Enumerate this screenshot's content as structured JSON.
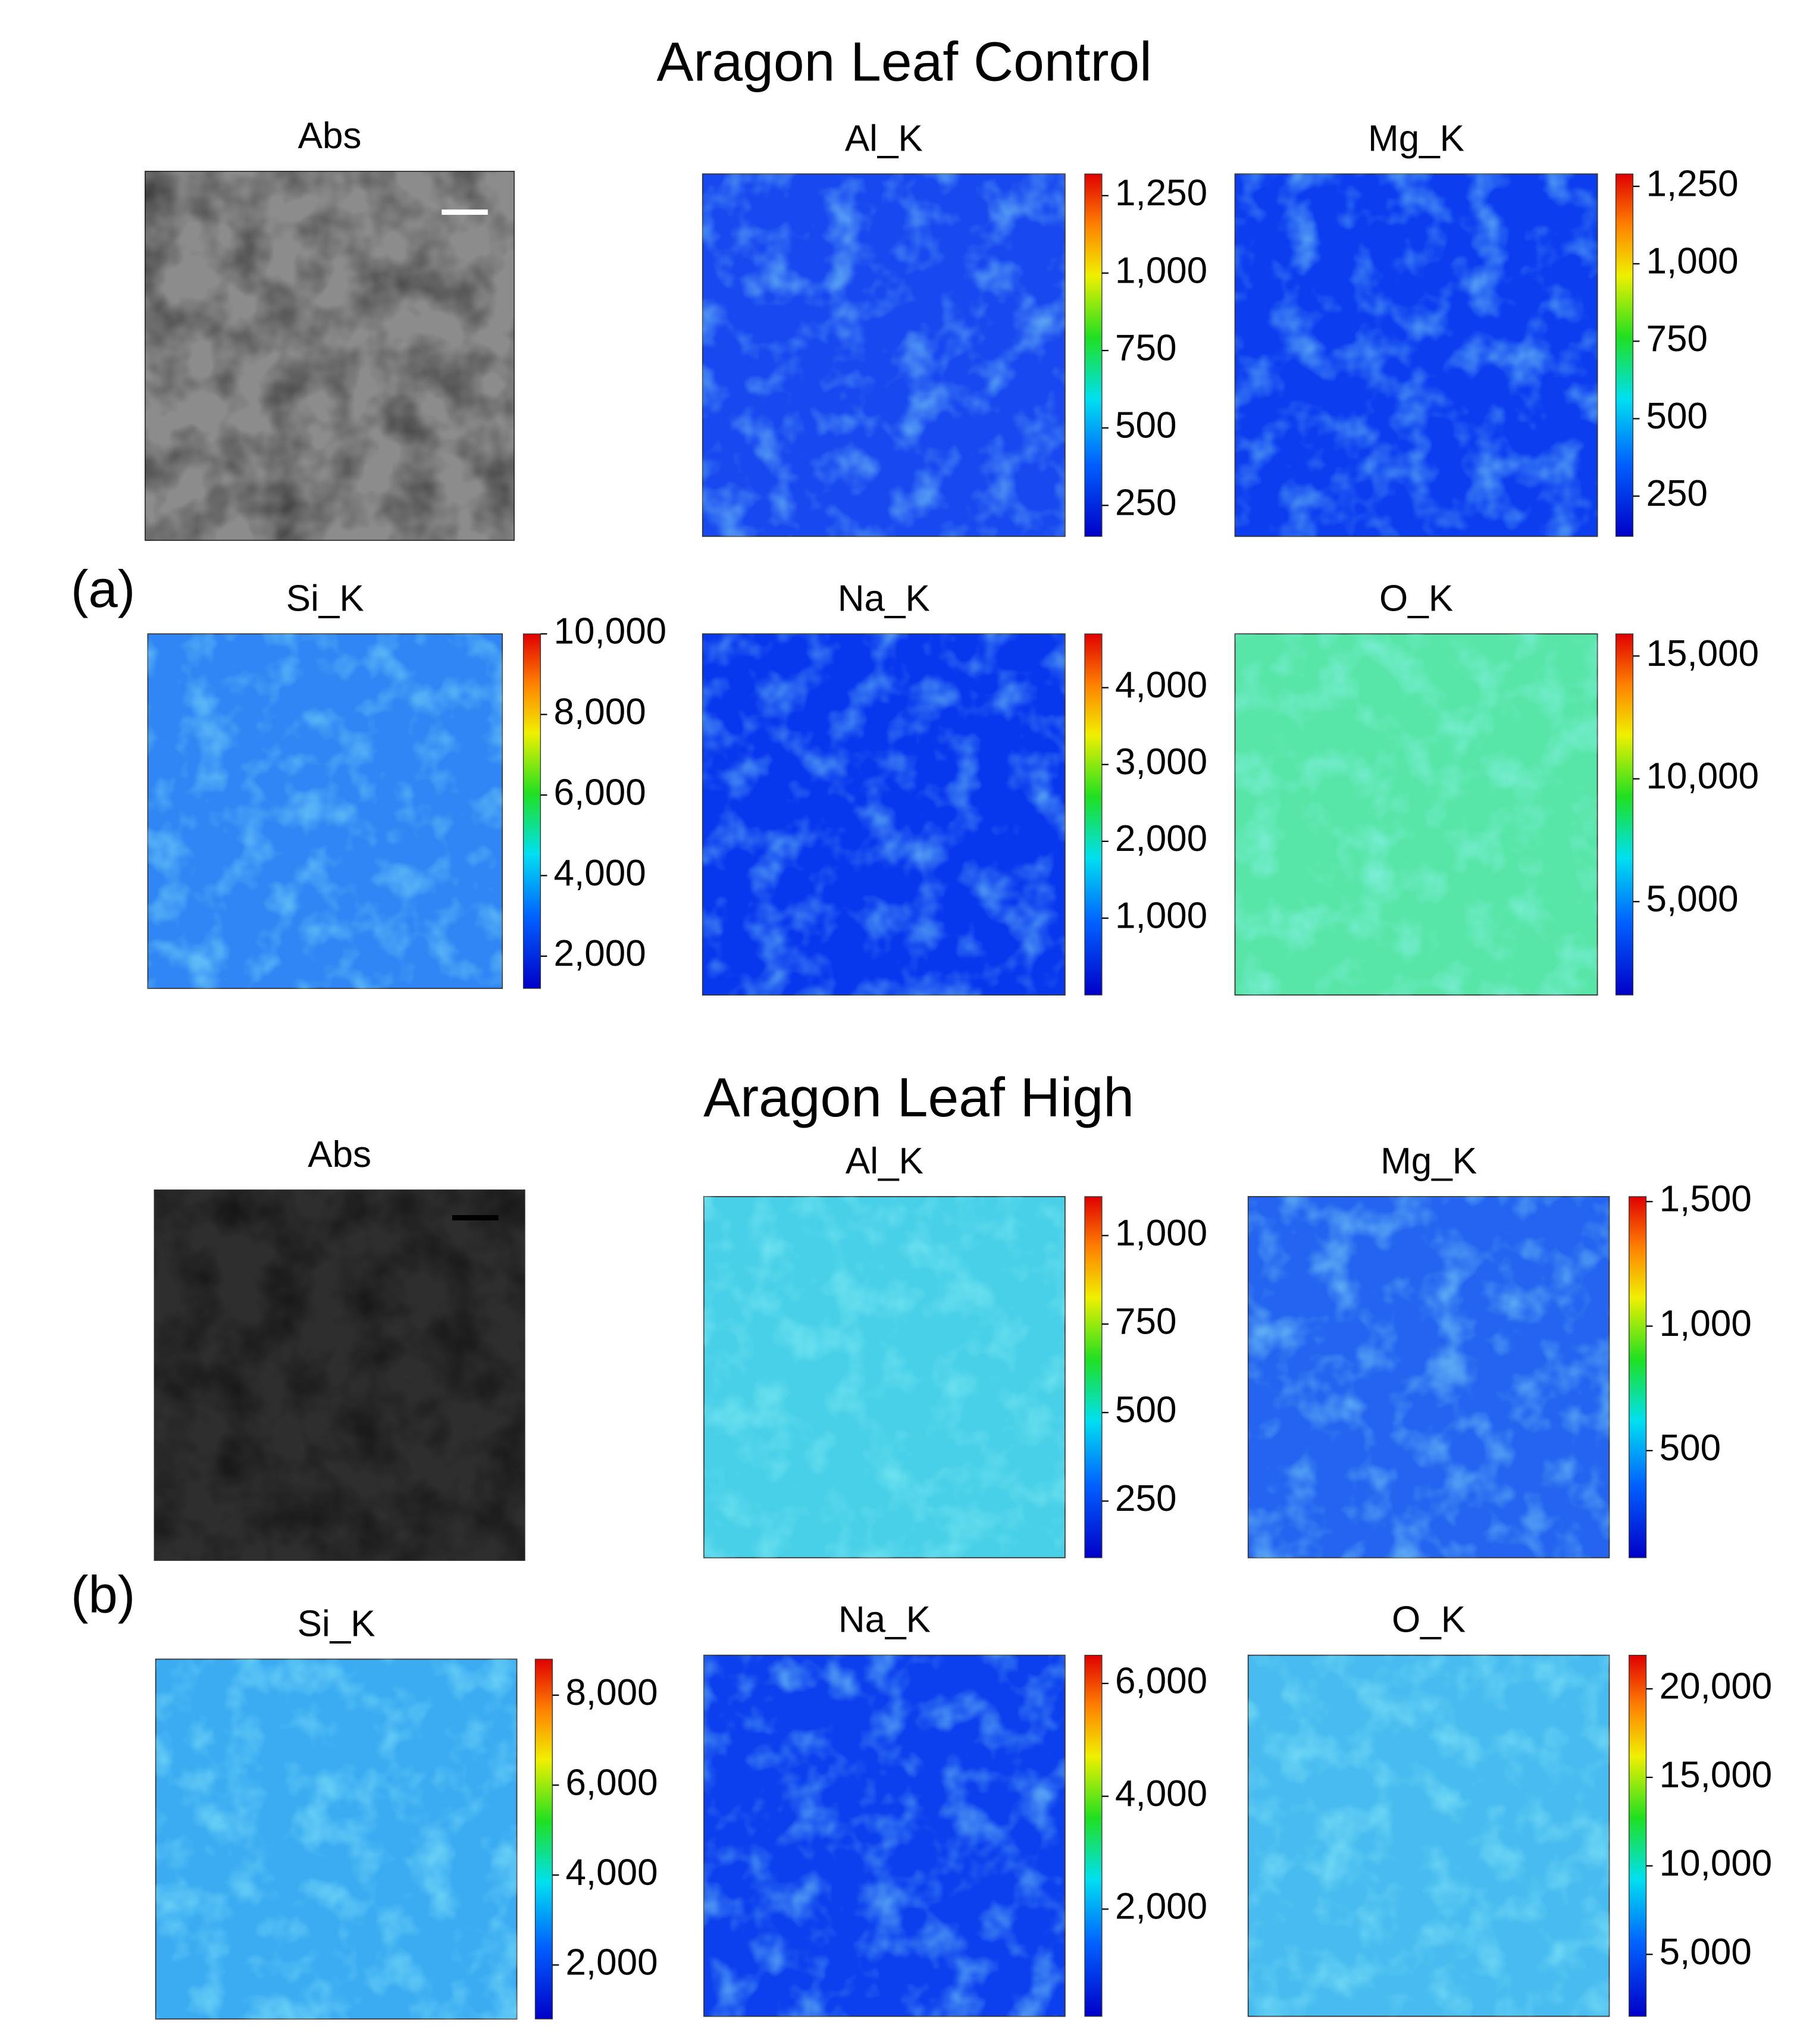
{
  "figure": {
    "panels": [
      {
        "label": "(a)",
        "title": "Aragon Leaf Control",
        "maps": [
          {
            "title": "Abs"
          },
          {
            "title": "Al_K",
            "clim": [
              150,
              1320
            ],
            "ticks": [
              {
                "value": 250,
                "label": "250"
              },
              {
                "value": 500,
                "label": "500"
              },
              {
                "value": 750,
                "label": "750"
              },
              {
                "value": 1000,
                "label": "1,000"
              },
              {
                "value": 1250,
                "label": "1,250"
              }
            ]
          },
          {
            "title": "Mg_K",
            "clim": [
              120,
              1290
            ],
            "ticks": [
              {
                "value": 250,
                "label": "250"
              },
              {
                "value": 500,
                "label": "500"
              },
              {
                "value": 750,
                "label": "750"
              },
              {
                "value": 1000,
                "label": "1,000"
              },
              {
                "value": 1250,
                "label": "1,250"
              }
            ]
          },
          {
            "title": "Si_K",
            "clim": [
              1200,
              10000
            ],
            "ticks": [
              {
                "value": 2000,
                "label": "2,000"
              },
              {
                "value": 4000,
                "label": "4,000"
              },
              {
                "value": 6000,
                "label": "6,000"
              },
              {
                "value": 8000,
                "label": "8,000"
              },
              {
                "value": 10000,
                "label": "10,000"
              }
            ]
          },
          {
            "title": "Na_K",
            "clim": [
              0,
              4700
            ],
            "ticks": [
              {
                "value": 1000,
                "label": "1,000"
              },
              {
                "value": 2000,
                "label": "2,000"
              },
              {
                "value": 3000,
                "label": "3,000"
              },
              {
                "value": 4000,
                "label": "4,000"
              }
            ]
          },
          {
            "title": "O_K",
            "clim": [
              1200,
              15900
            ],
            "ticks": [
              {
                "value": 5000,
                "label": "5,000"
              },
              {
                "value": 10000,
                "label": "10,000"
              },
              {
                "value": 15000,
                "label": "15,000"
              }
            ]
          }
        ]
      },
      {
        "label": "(b)",
        "title": "Aragon Leaf High",
        "maps": [
          {
            "title": "Abs"
          },
          {
            "title": "Al_K",
            "clim": [
              90,
              1110
            ],
            "ticks": [
              {
                "value": 250,
                "label": "250"
              },
              {
                "value": 500,
                "label": "500"
              },
              {
                "value": 750,
                "label": "750"
              },
              {
                "value": 1000,
                "label": "1,000"
              }
            ]
          },
          {
            "title": "Mg_K",
            "clim": [
              70,
              1520
            ],
            "ticks": [
              {
                "value": 500,
                "label": "500"
              },
              {
                "value": 1000,
                "label": "1,000"
              },
              {
                "value": 1500,
                "label": "1,500"
              }
            ]
          },
          {
            "title": "Si_K",
            "clim": [
              800,
              8800
            ],
            "ticks": [
              {
                "value": 2000,
                "label": "2,000"
              },
              {
                "value": 4000,
                "label": "4,000"
              },
              {
                "value": 6000,
                "label": "6,000"
              },
              {
                "value": 8000,
                "label": "8,000"
              }
            ]
          },
          {
            "title": "Na_K",
            "clim": [
              100,
              6500
            ],
            "ticks": [
              {
                "value": 2000,
                "label": "2,000"
              },
              {
                "value": 4000,
                "label": "4,000"
              },
              {
                "value": 6000,
                "label": "6,000"
              }
            ]
          },
          {
            "title": "O_K",
            "clim": [
              1500,
              21900
            ],
            "ticks": [
              {
                "value": 5000,
                "label": "5,000"
              },
              {
                "value": 10000,
                "label": "10,000"
              },
              {
                "value": 15000,
                "label": "15,000"
              },
              {
                "value": 20000,
                "label": "20,000"
              }
            ]
          }
        ]
      }
    ]
  }
}
